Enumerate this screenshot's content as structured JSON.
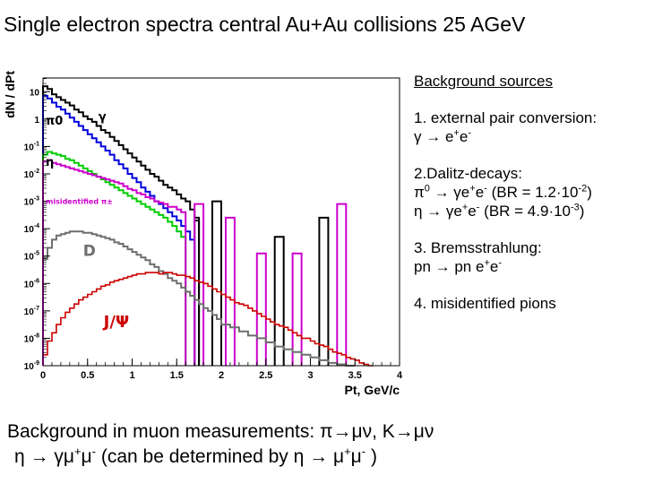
{
  "title": "Single electron spectra central Au+Au collisions 25 AGeV",
  "legend": {
    "heading": "Background sources",
    "items": [
      {
        "id": "conv",
        "lines": [
          [
            {
              "t": "1. external pair conversion:"
            }
          ],
          [
            {
              "t": "γ → e"
            },
            {
              "sup": "+"
            },
            {
              "t": "e"
            },
            {
              "sup": "-"
            }
          ]
        ]
      },
      {
        "id": "dalitz",
        "lines": [
          [
            {
              "t": "2.Dalitz-decays:"
            }
          ],
          [
            {
              "t": "π"
            },
            {
              "sup": "0"
            },
            {
              "t": " → γe"
            },
            {
              "sup": "+"
            },
            {
              "t": "e"
            },
            {
              "sup": "-"
            },
            {
              "t": " (BR = 1.2·10"
            },
            {
              "sup": "-2"
            },
            {
              "t": ")"
            }
          ],
          [
            {
              "t": "η → γe"
            },
            {
              "sup": "+"
            },
            {
              "t": "e"
            },
            {
              "sup": "-"
            },
            {
              "t": " (BR = 4.9·10"
            },
            {
              "sup": "-3"
            },
            {
              "t": ")"
            }
          ]
        ]
      },
      {
        "id": "brems",
        "lines": [
          [
            {
              "t": "3. Bremsstrahlung:"
            }
          ],
          [
            {
              "t": "pn → pn e"
            },
            {
              "sup": "+"
            },
            {
              "t": "e"
            },
            {
              "sup": "-"
            }
          ]
        ]
      },
      {
        "id": "misid",
        "lines": [
          [
            {
              "t": "4. misidentified pions"
            }
          ]
        ]
      }
    ]
  },
  "bottom": {
    "line1": [
      {
        "t": "Background in muon measurements: π→μν, K→μν"
      }
    ],
    "line2": [
      {
        "t": "η → γμ"
      },
      {
        "sup": "+"
      },
      {
        "t": "μ"
      },
      {
        "sup": "-"
      },
      {
        "t": " (can be determined by η → μ"
      },
      {
        "sup": "+"
      },
      {
        "t": "μ"
      },
      {
        "sup": "-"
      },
      {
        "t": " )"
      }
    ]
  },
  "chart_data": {
    "type": "line",
    "xlabel": "Pt, GeV/c",
    "ylabel": "dN / dPt",
    "xlim": [
      0,
      4
    ],
    "ylim_log10": [
      -9,
      1.5
    ],
    "y_log_scale": true,
    "grid": false,
    "xticks": [
      {
        "v": 0,
        "label": "0"
      },
      {
        "v": 0.5,
        "label": "0.5"
      },
      {
        "v": 1,
        "label": "1"
      },
      {
        "v": 1.5,
        "label": "1.5"
      },
      {
        "v": 2,
        "label": "2"
      },
      {
        "v": 2.5,
        "label": "2.5"
      },
      {
        "v": 3,
        "label": "3"
      },
      {
        "v": 3.5,
        "label": "3.5"
      },
      {
        "v": 4,
        "label": "4"
      }
    ],
    "yticks": [
      {
        "e": 1,
        "label": "10"
      },
      {
        "e": 0,
        "label": "1"
      },
      {
        "e": -1,
        "label": "10-1"
      },
      {
        "e": -2,
        "label": "10-2"
      },
      {
        "e": -3,
        "label": "10-3"
      },
      {
        "e": -4,
        "label": "10-4"
      },
      {
        "e": -5,
        "label": "10-5"
      },
      {
        "e": -6,
        "label": "10-6"
      },
      {
        "e": -7,
        "label": "10-7"
      },
      {
        "e": -8,
        "label": "10-8"
      },
      {
        "e": -9,
        "label": "10-9"
      }
    ],
    "annotations": [
      {
        "text": "π0",
        "x": 0.03,
        "log10y": -0.2,
        "color": "#000000",
        "size": 13
      },
      {
        "text": "γ",
        "x": 0.62,
        "log10y": -0.05,
        "color": "#000000",
        "size": 13
      },
      {
        "text": "η",
        "x": 0.03,
        "log10y": -1.7,
        "color": "#000000",
        "size": 13
      },
      {
        "text": "misidentified π±",
        "x": 0.03,
        "log10y": -3.1,
        "color": "#cc00cc",
        "size": 8
      },
      {
        "text": "D",
        "x": 0.45,
        "log10y": -5.0,
        "color": "#6e6e6e",
        "size": 17
      },
      {
        "text": "J/Ψ",
        "x": 0.68,
        "log10y": -7.6,
        "color": "#cc0000",
        "size": 18
      }
    ],
    "series": [
      {
        "color": "#000000",
        "width": 2,
        "x_edges": [
          0,
          0.05,
          0.1,
          0.15,
          0.2,
          0.25,
          0.3,
          0.35,
          0.4,
          0.45,
          0.5,
          0.55,
          0.6,
          0.65,
          0.7,
          0.75,
          0.8,
          0.85,
          0.9,
          0.95,
          1.0,
          1.05,
          1.1,
          1.15,
          1.2,
          1.25,
          1.3,
          1.35,
          1.4,
          1.45,
          1.5,
          1.55,
          1.6,
          1.65,
          1.7,
          1.75
        ],
        "log10y": [
          1.2,
          1.1,
          0.9,
          0.8,
          0.7,
          0.6,
          0.5,
          0.35,
          0.25,
          0.1,
          0,
          -0.1,
          -0.25,
          -0.4,
          -0.5,
          -0.65,
          -0.8,
          -0.95,
          -1.1,
          -1.25,
          -1.4,
          -1.55,
          -1.7,
          -1.85,
          -2.0,
          -2.1,
          -2.25,
          -2.4,
          -2.5,
          -2.6,
          -2.75,
          -2.9,
          -3.0,
          -3.3,
          -3.6
        ],
        "drop_to_floor": true
      },
      {
        "color": "#000000",
        "width": 2,
        "x_edges": [
          1.7,
          1.75
        ],
        "log10y": [
          -3.7
        ],
        "drop_to_floor": true
      },
      {
        "color": "#000000",
        "width": 2,
        "x_edges": [
          1.9,
          2.0
        ],
        "log10y": [
          -3.0
        ],
        "drop_to_floor": true
      },
      {
        "color": "#000000",
        "width": 2,
        "x_edges": [
          2.6,
          2.7
        ],
        "log10y": [
          -4.3
        ],
        "drop_to_floor": true
      },
      {
        "color": "#000000",
        "width": 2,
        "x_edges": [
          3.1,
          3.2
        ],
        "log10y": [
          -3.6
        ],
        "drop_to_floor": true
      },
      {
        "color": "#0000dd",
        "width": 2,
        "x_edges": [
          0,
          0.05,
          0.1,
          0.15,
          0.2,
          0.25,
          0.3,
          0.35,
          0.4,
          0.45,
          0.5,
          0.55,
          0.6,
          0.65,
          0.7,
          0.75,
          0.8,
          0.85,
          0.9,
          0.95,
          1.0,
          1.05,
          1.1,
          1.15,
          1.2,
          1.25,
          1.3,
          1.35,
          1.4,
          1.45,
          1.5,
          1.55,
          1.6,
          1.65,
          1.7
        ],
        "log10y": [
          0.85,
          0.75,
          0.6,
          0.45,
          0.35,
          0.2,
          0.05,
          -0.1,
          -0.25,
          -0.4,
          -0.55,
          -0.7,
          -0.85,
          -1.0,
          -1.15,
          -1.3,
          -1.5,
          -1.65,
          -1.8,
          -2.0,
          -2.15,
          -2.3,
          -2.5,
          -2.65,
          -2.8,
          -3.0,
          -3.1,
          -3.25,
          -3.4,
          -3.55,
          -3.7,
          -3.9,
          -4.1,
          -4.4
        ],
        "drop_to_floor": true
      },
      {
        "color": "#00cc00",
        "width": 2,
        "x_edges": [
          0,
          0.05,
          0.1,
          0.15,
          0.2,
          0.25,
          0.3,
          0.35,
          0.4,
          0.45,
          0.5,
          0.55,
          0.6,
          0.65,
          0.7,
          0.75,
          0.8,
          0.85,
          0.9,
          0.95,
          1.0,
          1.05,
          1.1,
          1.15,
          1.2,
          1.25,
          1.3,
          1.35,
          1.4,
          1.45,
          1.5,
          1.55,
          1.6
        ],
        "log10y": [
          -1.3,
          -1.2,
          -1.25,
          -1.3,
          -1.35,
          -1.45,
          -1.5,
          -1.6,
          -1.7,
          -1.8,
          -1.9,
          -2.0,
          -2.1,
          -2.2,
          -2.3,
          -2.4,
          -2.5,
          -2.6,
          -2.7,
          -2.8,
          -2.9,
          -3.0,
          -3.1,
          -3.2,
          -3.3,
          -3.4,
          -3.5,
          -3.6,
          -3.75,
          -3.9,
          -4.1,
          -4.3
        ],
        "drop_to_floor": true
      },
      {
        "color": "#cc00cc",
        "width": 2,
        "x_edges": [
          0,
          0.05,
          0.1,
          0.15,
          0.2,
          0.25,
          0.3,
          0.35,
          0.4,
          0.45,
          0.5,
          0.55,
          0.6,
          0.65,
          0.7,
          0.75,
          0.8,
          0.85,
          0.9,
          0.95,
          1.0,
          1.05,
          1.1,
          1.15,
          1.2,
          1.25,
          1.3,
          1.35,
          1.4,
          1.45,
          1.5,
          1.55,
          1.6
        ],
        "log10y": [
          -1.55,
          -1.5,
          -1.6,
          -1.65,
          -1.7,
          -1.75,
          -1.8,
          -1.85,
          -1.9,
          -1.95,
          -2.0,
          -2.05,
          -2.1,
          -2.15,
          -2.2,
          -2.25,
          -2.3,
          -2.35,
          -2.45,
          -2.55,
          -2.6,
          -2.7,
          -2.75,
          -2.85,
          -2.9,
          -3.0,
          -3.05,
          -3.1,
          -3.2,
          -3.2,
          -3.3,
          -3.4
        ],
        "drop_to_floor": true
      },
      {
        "color": "#cc00cc",
        "width": 2,
        "x_edges": [
          1.7,
          1.8
        ],
        "log10y": [
          -3.1
        ],
        "drop_to_floor": true
      },
      {
        "color": "#cc00cc",
        "width": 2,
        "x_edges": [
          2.05,
          2.15
        ],
        "log10y": [
          -3.6
        ],
        "drop_to_floor": true
      },
      {
        "color": "#cc00cc",
        "width": 2,
        "x_edges": [
          2.4,
          2.5
        ],
        "log10y": [
          -4.9
        ],
        "drop_to_floor": true
      },
      {
        "color": "#cc00cc",
        "width": 2,
        "x_edges": [
          2.8,
          2.9
        ],
        "log10y": [
          -4.9
        ],
        "drop_to_floor": true
      },
      {
        "color": "#cc00cc",
        "width": 2,
        "x_edges": [
          3.3,
          3.4
        ],
        "log10y": [
          -3.1
        ],
        "drop_to_floor": true
      },
      {
        "color": "#6e6e6e",
        "width": 2,
        "x_edges": [
          0,
          0.05,
          0.1,
          0.15,
          0.2,
          0.25,
          0.3,
          0.35,
          0.4,
          0.45,
          0.5,
          0.55,
          0.6,
          0.65,
          0.7,
          0.75,
          0.8,
          0.85,
          0.9,
          0.95,
          1.0,
          1.05,
          1.1,
          1.15,
          1.2,
          1.25,
          1.3,
          1.35,
          1.4,
          1.45,
          1.5,
          1.55,
          1.6,
          1.65,
          1.7,
          1.75,
          1.8,
          1.85,
          1.9,
          1.95,
          2.0,
          2.1,
          2.2,
          2.3,
          2.4,
          2.5,
          2.6,
          2.7,
          2.8,
          2.9,
          3.0,
          3.1,
          3.2,
          3.3,
          3.4,
          3.5
        ],
        "log10y": [
          -5.1,
          -4.7,
          -4.4,
          -4.25,
          -4.2,
          -4.15,
          -4.1,
          -4.1,
          -4.1,
          -4.15,
          -4.15,
          -4.2,
          -4.25,
          -4.3,
          -4.35,
          -4.4,
          -4.5,
          -4.55,
          -4.65,
          -4.75,
          -4.85,
          -4.95,
          -5.05,
          -5.15,
          -5.3,
          -5.4,
          -5.55,
          -5.65,
          -5.8,
          -5.9,
          -6.0,
          -6.15,
          -6.3,
          -6.45,
          -6.6,
          -6.75,
          -6.9,
          -7.0,
          -7.15,
          -7.3,
          -7.5,
          -7.6,
          -7.75,
          -7.9,
          -8.0,
          -8.15,
          -8.3,
          -8.4,
          -8.5,
          -8.6,
          -8.7,
          -8.8,
          -8.9,
          -8.95,
          -9.0
        ],
        "drop_to_floor": false
      },
      {
        "color": "#cc0000",
        "width": 1.6,
        "x_edges": [
          0,
          0.05,
          0.1,
          0.15,
          0.2,
          0.25,
          0.3,
          0.35,
          0.4,
          0.45,
          0.5,
          0.55,
          0.6,
          0.65,
          0.7,
          0.75,
          0.8,
          0.85,
          0.9,
          0.95,
          1.0,
          1.05,
          1.1,
          1.15,
          1.2,
          1.25,
          1.3,
          1.35,
          1.4,
          1.45,
          1.5,
          1.55,
          1.6,
          1.65,
          1.7,
          1.75,
          1.8,
          1.85,
          1.9,
          1.95,
          2.0,
          2.05,
          2.1,
          2.15,
          2.2,
          2.25,
          2.3,
          2.35,
          2.4,
          2.45,
          2.5,
          2.55,
          2.6,
          2.65,
          2.7,
          2.75,
          2.8,
          2.85,
          2.9,
          2.95,
          3.0,
          3.05,
          3.1,
          3.15,
          3.2,
          3.25,
          3.3,
          3.35,
          3.4,
          3.45,
          3.5,
          3.55,
          3.6,
          3.65,
          3.7
        ],
        "log10y": [
          -8.6,
          -8.1,
          -7.8,
          -7.5,
          -7.25,
          -7.05,
          -6.9,
          -6.75,
          -6.6,
          -6.5,
          -6.4,
          -6.3,
          -6.2,
          -6.1,
          -6.05,
          -5.95,
          -5.9,
          -5.85,
          -5.8,
          -5.75,
          -5.7,
          -5.65,
          -5.65,
          -5.6,
          -5.6,
          -5.6,
          -5.65,
          -5.6,
          -5.6,
          -5.65,
          -5.7,
          -5.7,
          -5.75,
          -5.8,
          -5.9,
          -5.95,
          -6.0,
          -6.1,
          -6.2,
          -6.3,
          -6.4,
          -6.5,
          -6.6,
          -6.7,
          -6.75,
          -6.8,
          -6.9,
          -7.0,
          -7.1,
          -7.2,
          -7.3,
          -7.4,
          -7.5,
          -7.55,
          -7.6,
          -7.7,
          -7.8,
          -7.9,
          -8.0,
          -8.0,
          -8.1,
          -8.2,
          -8.25,
          -8.3,
          -8.4,
          -8.5,
          -8.55,
          -8.6,
          -8.7,
          -8.75,
          -8.8,
          -8.9,
          -8.95,
          -9.0
        ],
        "drop_to_floor": false
      }
    ]
  }
}
